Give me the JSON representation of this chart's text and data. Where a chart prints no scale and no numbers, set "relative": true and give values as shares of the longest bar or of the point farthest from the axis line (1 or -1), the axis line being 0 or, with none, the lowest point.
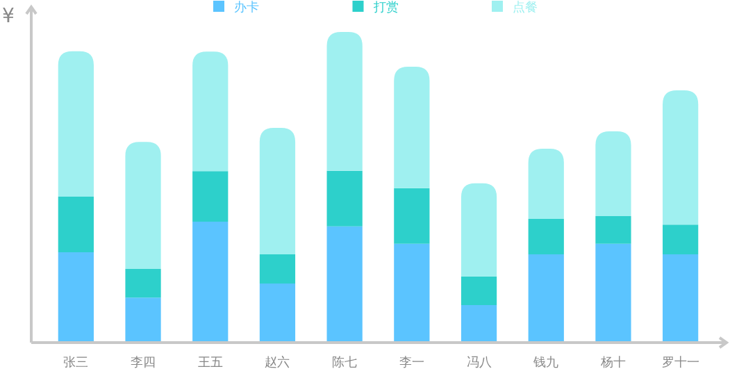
{
  "chart_data": {
    "type": "bar",
    "stacked": true,
    "relative": true,
    "ylabel": "¥",
    "legend": "top",
    "categories": [
      "张三",
      "李四",
      "王五",
      "赵六",
      "陈七",
      "李一",
      "冯八",
      "钱九",
      "杨十",
      "罗十一"
    ],
    "series": [
      {
        "name": "办卡",
        "color": "#5bc4ff",
        "values": [
          0.291,
          0.145,
          0.389,
          0.19,
          0.374,
          0.318,
          0.121,
          0.284,
          0.318,
          0.284
        ]
      },
      {
        "name": "打赏",
        "color": "#2dd0cb",
        "values": [
          0.179,
          0.092,
          0.163,
          0.094,
          0.179,
          0.179,
          0.092,
          0.114,
          0.089,
          0.096
        ]
      },
      {
        "name": "点餐",
        "color": "#9ff0f0",
        "values": [
          0.468,
          0.409,
          0.385,
          0.407,
          0.447,
          0.391,
          0.3,
          0.226,
          0.273,
          0.432
        ]
      }
    ]
  }
}
